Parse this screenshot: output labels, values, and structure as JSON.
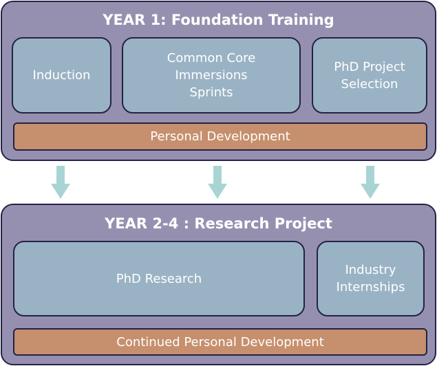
{
  "year1": {
    "title": "YEAR 1: Foundation Training",
    "boxes": [
      {
        "label": "Induction"
      },
      {
        "label": "Common Core\nImmersions\nSprints"
      },
      {
        "label": "PhD Project\nSelection"
      }
    ],
    "bar": "Personal Development"
  },
  "year2": {
    "title": "YEAR 2-4 : Research Project",
    "boxes": [
      {
        "label": "PhD Research"
      },
      {
        "label": "Industry\nInternships"
      }
    ],
    "bar": "Continued Personal Development"
  },
  "colors": {
    "panel": "#9690b0",
    "box": "#9ab3c4",
    "bar": "#c68f6d",
    "arrow": "#a8d5d3",
    "border": "#232244"
  }
}
